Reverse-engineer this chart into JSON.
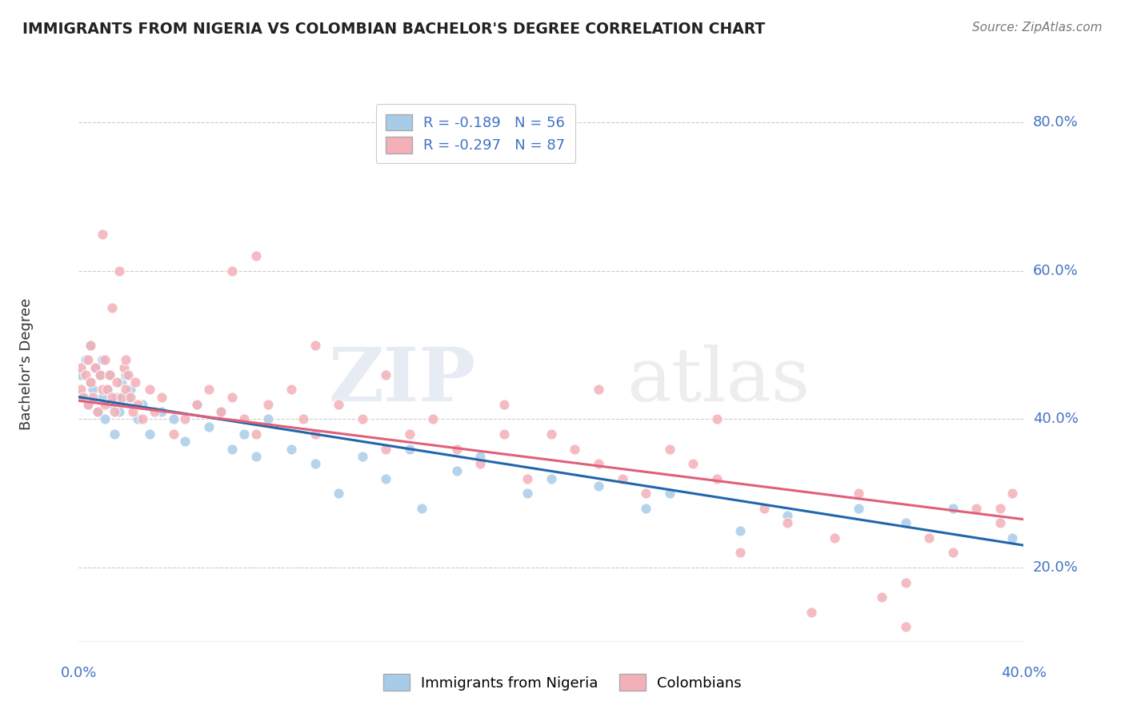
{
  "title": "IMMIGRANTS FROM NIGERIA VS COLOMBIAN BACHELOR'S DEGREE CORRELATION CHART",
  "source": "Source: ZipAtlas.com",
  "ylabel_label": "Bachelor's Degree",
  "right_yticks": [
    20.0,
    40.0,
    60.0,
    80.0
  ],
  "xlim": [
    0.0,
    40.0
  ],
  "ylim": [
    10.0,
    85.0
  ],
  "nigeria_R": -0.189,
  "nigeria_N": 56,
  "colombia_R": -0.297,
  "colombia_N": 87,
  "nigeria_color": "#a8cce8",
  "colombia_color": "#f4b0b8",
  "nigeria_line_color": "#2166ac",
  "colombia_line_color": "#e0607a",
  "background_color": "#ffffff",
  "nigeria_x": [
    0.1,
    0.2,
    0.3,
    0.4,
    0.5,
    0.5,
    0.6,
    0.7,
    0.8,
    0.9,
    1.0,
    1.0,
    1.1,
    1.2,
    1.3,
    1.4,
    1.5,
    1.6,
    1.7,
    1.8,
    2.0,
    2.1,
    2.2,
    2.5,
    2.7,
    3.0,
    3.5,
    4.0,
    4.5,
    5.0,
    5.5,
    6.0,
    6.5,
    7.0,
    7.5,
    8.0,
    9.0,
    10.0,
    11.0,
    12.0,
    13.0,
    14.0,
    14.5,
    16.0,
    17.0,
    19.0,
    20.0,
    22.0,
    24.0,
    25.0,
    28.0,
    30.0,
    33.0,
    35.0,
    37.0,
    39.5
  ],
  "nigeria_y": [
    46,
    43,
    48,
    42,
    45,
    50,
    44,
    47,
    41,
    46,
    43,
    48,
    40,
    44,
    46,
    42,
    38,
    43,
    41,
    45,
    46,
    43,
    44,
    40,
    42,
    38,
    41,
    40,
    37,
    42,
    39,
    41,
    36,
    38,
    35,
    40,
    36,
    34,
    30,
    35,
    32,
    36,
    28,
    33,
    35,
    30,
    32,
    31,
    28,
    30,
    25,
    27,
    28,
    26,
    28,
    24
  ],
  "colombia_x": [
    0.1,
    0.1,
    0.2,
    0.3,
    0.4,
    0.4,
    0.5,
    0.5,
    0.6,
    0.7,
    0.8,
    0.9,
    1.0,
    1.0,
    1.1,
    1.1,
    1.2,
    1.3,
    1.4,
    1.4,
    1.5,
    1.6,
    1.7,
    1.8,
    1.9,
    2.0,
    2.0,
    2.1,
    2.2,
    2.3,
    2.4,
    2.5,
    2.7,
    3.0,
    3.2,
    3.5,
    4.0,
    4.5,
    5.0,
    5.5,
    6.0,
    6.5,
    7.0,
    7.5,
    8.0,
    9.0,
    9.5,
    10.0,
    11.0,
    12.0,
    13.0,
    14.0,
    15.0,
    16.0,
    17.0,
    18.0,
    19.0,
    20.0,
    21.0,
    22.0,
    23.0,
    24.0,
    25.0,
    26.0,
    27.0,
    28.0,
    29.0,
    30.0,
    31.0,
    32.0,
    33.0,
    34.0,
    35.0,
    36.0,
    37.0,
    38.0,
    39.0,
    39.5,
    6.5,
    7.5,
    10.0,
    13.0,
    18.0,
    22.0,
    27.0,
    35.0,
    39.0
  ],
  "colombia_y": [
    44,
    47,
    43,
    46,
    42,
    48,
    45,
    50,
    43,
    47,
    41,
    46,
    44,
    65,
    48,
    42,
    44,
    46,
    43,
    55,
    41,
    45,
    60,
    43,
    47,
    44,
    48,
    46,
    43,
    41,
    45,
    42,
    40,
    44,
    41,
    43,
    38,
    40,
    42,
    44,
    41,
    43,
    40,
    38,
    42,
    44,
    40,
    38,
    42,
    40,
    36,
    38,
    40,
    36,
    34,
    38,
    32,
    38,
    36,
    34,
    32,
    30,
    36,
    34,
    32,
    22,
    28,
    26,
    14,
    24,
    30,
    16,
    12,
    24,
    22,
    28,
    26,
    30,
    60,
    62,
    50,
    46,
    42,
    44,
    40,
    18,
    28
  ]
}
